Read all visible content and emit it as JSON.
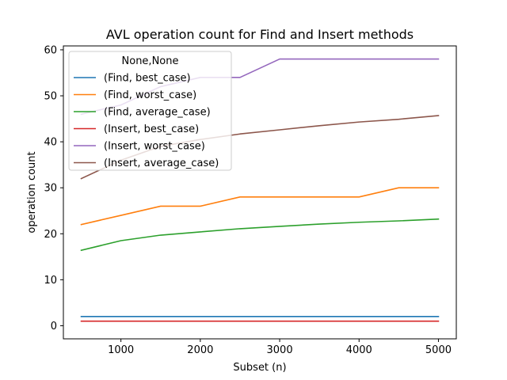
{
  "chart_data": {
    "type": "line",
    "title": "AVL operation count for Find and Insert methods",
    "xlabel": "Subset (n)",
    "ylabel": "operation count",
    "xlim": [
      275,
      5225
    ],
    "ylim": [
      -2.85,
      60.85
    ],
    "x_ticks": [
      1000,
      2000,
      3000,
      4000,
      5000
    ],
    "y_ticks": [
      0,
      10,
      20,
      30,
      40,
      50,
      60
    ],
    "grid": false,
    "legend_title": "None,None",
    "legend_position": "upper-left",
    "x": [
      500,
      1000,
      1500,
      2000,
      2500,
      3000,
      3500,
      4000,
      4500,
      5000
    ],
    "series": [
      {
        "name": "(Find, best_case)",
        "color": "#1f77b4",
        "values": [
          2,
          2,
          2,
          2,
          2,
          2,
          2,
          2,
          2,
          2
        ]
      },
      {
        "name": "(Find, worst_case)",
        "color": "#ff7f0e",
        "values": [
          22,
          24,
          26,
          26,
          28,
          28,
          28,
          28,
          30,
          30
        ]
      },
      {
        "name": "(Find, average_case)",
        "color": "#2ca02c",
        "values": [
          16.4,
          18.5,
          19.7,
          20.4,
          21.1,
          21.6,
          22.1,
          22.5,
          22.8,
          23.2
        ]
      },
      {
        "name": "(Insert, best_case)",
        "color": "#d62728",
        "values": [
          1,
          1,
          1,
          1,
          1,
          1,
          1,
          1,
          1,
          1
        ]
      },
      {
        "name": "(Insert, worst_case)",
        "color": "#9467bd",
        "values": [
          46,
          48,
          52,
          54,
          54,
          58,
          58,
          58,
          58,
          58
        ]
      },
      {
        "name": "(Insert, average_case)",
        "color": "#8c564b",
        "values": [
          32,
          36,
          39,
          40.5,
          41.7,
          42.6,
          43.5,
          44.3,
          44.9,
          45.7
        ]
      }
    ]
  }
}
